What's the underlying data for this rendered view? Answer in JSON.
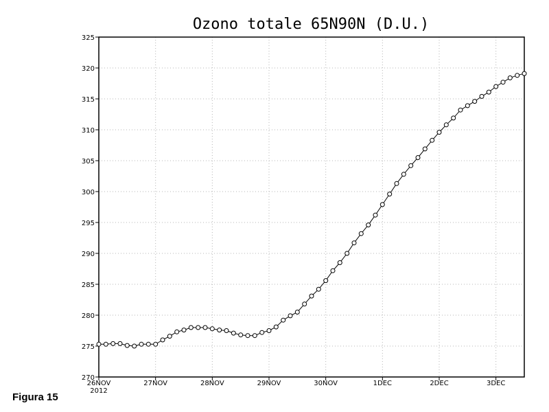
{
  "caption": "Figura 15",
  "chart_data": {
    "type": "line",
    "title": "Ozono totale 65N90N (D.U.)",
    "xlabel": "",
    "ylabel": "",
    "ylim": [
      270,
      325
    ],
    "y_ticks": [
      270,
      275,
      280,
      285,
      290,
      295,
      300,
      305,
      310,
      315,
      320,
      325
    ],
    "x_ticks": [
      {
        "label": "26NOV",
        "sublabel": "2012",
        "day": 0
      },
      {
        "label": "27NOV",
        "sublabel": "",
        "day": 1
      },
      {
        "label": "28NOV",
        "sublabel": "",
        "day": 2
      },
      {
        "label": "29NOV",
        "sublabel": "",
        "day": 3
      },
      {
        "label": "30NOV",
        "sublabel": "",
        "day": 4
      },
      {
        "label": "1DEC",
        "sublabel": "",
        "day": 5
      },
      {
        "label": "2DEC",
        "sublabel": "",
        "day": 6
      },
      {
        "label": "3DEC",
        "sublabel": "",
        "day": 7
      }
    ],
    "xlim_days": [
      0,
      7.5
    ],
    "grid": true,
    "line_color": "#000000",
    "marker": "open-circle",
    "series": [
      {
        "x_step_days": 0.125,
        "values": [
          275.3,
          275.3,
          275.4,
          275.4,
          275.1,
          275.0,
          275.3,
          275.3,
          275.3,
          276.0,
          276.6,
          277.3,
          277.6,
          278.0,
          278.0,
          278.0,
          277.8,
          277.6,
          277.5,
          277.1,
          276.8,
          276.7,
          276.7,
          277.2,
          277.5,
          278.1,
          279.2,
          279.9,
          280.5,
          281.8,
          283.1,
          284.2,
          285.6,
          287.2,
          288.5,
          290.0,
          291.7,
          293.2,
          294.6,
          296.2,
          297.9,
          299.6,
          301.3,
          302.8,
          304.2,
          305.5,
          306.9,
          308.3,
          309.6,
          310.8,
          311.9,
          313.2,
          313.9,
          314.6,
          315.4,
          316.1,
          317.0,
          317.7,
          318.4,
          318.8,
          319.1
        ]
      }
    ]
  }
}
